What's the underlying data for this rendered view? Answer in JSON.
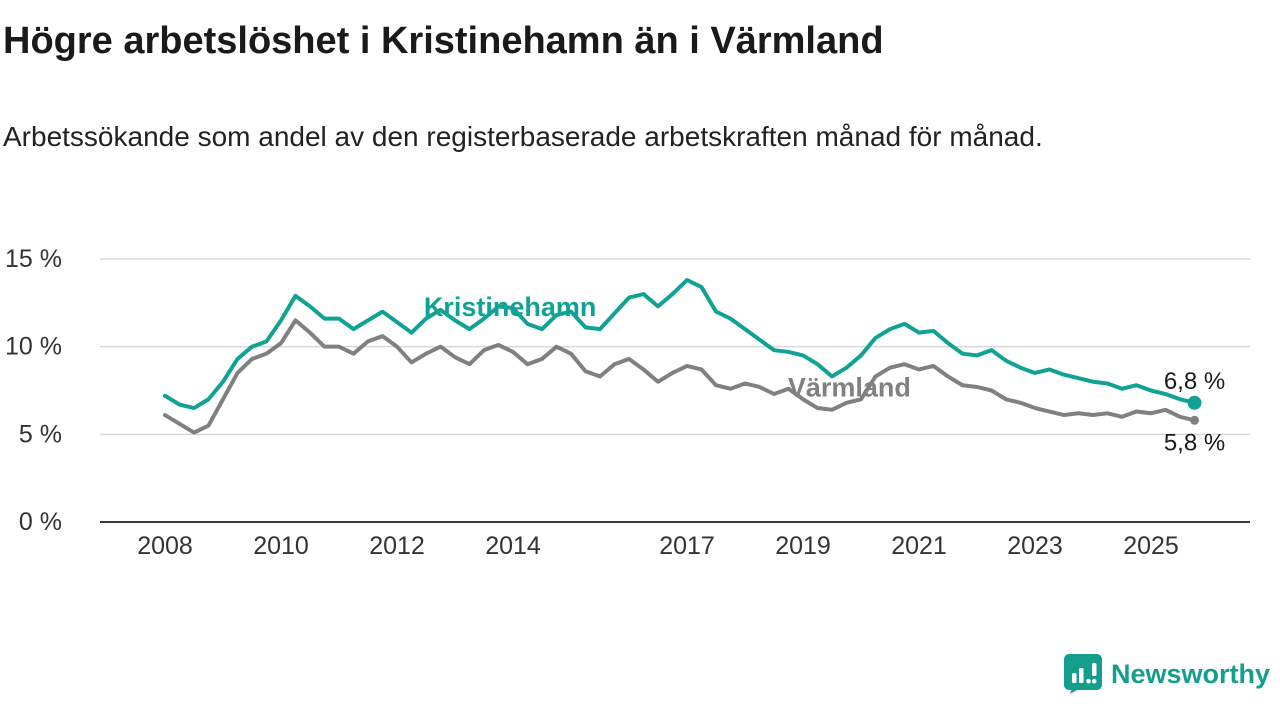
{
  "title": "Högre arbetslöshet i Kristinehamn än i Värmland",
  "subtitle": "Arbetssökande som andel av den registerbaserade arbetskraften månad för månad.",
  "brand": {
    "name": "Newsworthy",
    "color": "#159e8d"
  },
  "chart_data": {
    "type": "line",
    "title": "Högre arbetslöshet i Kristinehamn än i Värmland",
    "xlabel": "",
    "ylabel": "",
    "xlim": [
      2007.6,
      2026.4
    ],
    "ylim": [
      0,
      16.5
    ],
    "grid": "horizontal",
    "legend_position": "inline-labels",
    "colors": {
      "grid": "#d8d8d8",
      "axis": "#3c3c3c",
      "tick_text": "#333333"
    },
    "x_ticks": [
      {
        "value": 2008,
        "label": "2008"
      },
      {
        "value": 2010,
        "label": "2010"
      },
      {
        "value": 2012,
        "label": "2012"
      },
      {
        "value": 2014,
        "label": "2014"
      },
      {
        "value": 2017,
        "label": "2017"
      },
      {
        "value": 2019,
        "label": "2019"
      },
      {
        "value": 2021,
        "label": "2021"
      },
      {
        "value": 2023,
        "label": "2023"
      },
      {
        "value": 2025,
        "label": "2025"
      }
    ],
    "y_ticks": [
      {
        "value": 0,
        "label": "0 %"
      },
      {
        "value": 5,
        "label": "5 %"
      },
      {
        "value": 10,
        "label": "10 %"
      },
      {
        "value": 15,
        "label": "15 %"
      }
    ],
    "series": [
      {
        "name": "Kristinehamn",
        "label": "Kristinehamn",
        "color": "#10a294",
        "x_start": 2008.0,
        "x_step": 0.25,
        "values": [
          7.2,
          6.7,
          6.5,
          7.0,
          8.0,
          9.3,
          10.0,
          10.3,
          11.5,
          12.9,
          12.3,
          11.6,
          11.6,
          11.0,
          11.5,
          12.0,
          11.4,
          10.8,
          11.6,
          12.1,
          11.5,
          11.0,
          11.6,
          12.3,
          12.2,
          11.3,
          11.0,
          11.8,
          12.0,
          11.1,
          11.0,
          11.9,
          12.8,
          13.0,
          12.3,
          13.0,
          13.8,
          13.4,
          12.0,
          11.6,
          11.0,
          10.4,
          9.8,
          9.7,
          9.5,
          9.0,
          8.3,
          8.8,
          9.5,
          10.5,
          11.0,
          11.3,
          10.8,
          10.9,
          10.2,
          9.6,
          9.5,
          9.8,
          9.2,
          8.8,
          8.5,
          8.7,
          8.4,
          8.2,
          8.0,
          7.9,
          7.6,
          7.8,
          7.5,
          7.3,
          7.0,
          6.8
        ],
        "label_at": {
          "x": 2013.95,
          "y": 11.75
        },
        "end_label": "6,8 %",
        "end_label_pos": "above",
        "end_dot_r": 7
      },
      {
        "name": "Värmland",
        "label": "Värmland",
        "color": "#808080",
        "x_start": 2008.0,
        "x_step": 0.25,
        "values": [
          6.1,
          5.6,
          5.1,
          5.5,
          7.0,
          8.5,
          9.3,
          9.6,
          10.2,
          11.5,
          10.8,
          10.0,
          10.0,
          9.6,
          10.3,
          10.6,
          10.0,
          9.1,
          9.6,
          10.0,
          9.4,
          9.0,
          9.8,
          10.1,
          9.7,
          9.0,
          9.3,
          10.0,
          9.6,
          8.6,
          8.3,
          9.0,
          9.3,
          8.7,
          8.0,
          8.5,
          8.9,
          8.7,
          7.8,
          7.6,
          7.9,
          7.7,
          7.3,
          7.6,
          7.0,
          6.5,
          6.4,
          6.8,
          7.0,
          8.3,
          8.8,
          9.0,
          8.7,
          8.9,
          8.3,
          7.8,
          7.7,
          7.5,
          7.0,
          6.8,
          6.5,
          6.3,
          6.1,
          6.2,
          6.1,
          6.2,
          6.0,
          6.3,
          6.2,
          6.4,
          6.0,
          5.8
        ],
        "label_at": {
          "x": 2019.8,
          "y": 7.15
        },
        "end_label": "5,8 %",
        "end_label_pos": "below",
        "end_dot_r": 4.5
      }
    ]
  }
}
